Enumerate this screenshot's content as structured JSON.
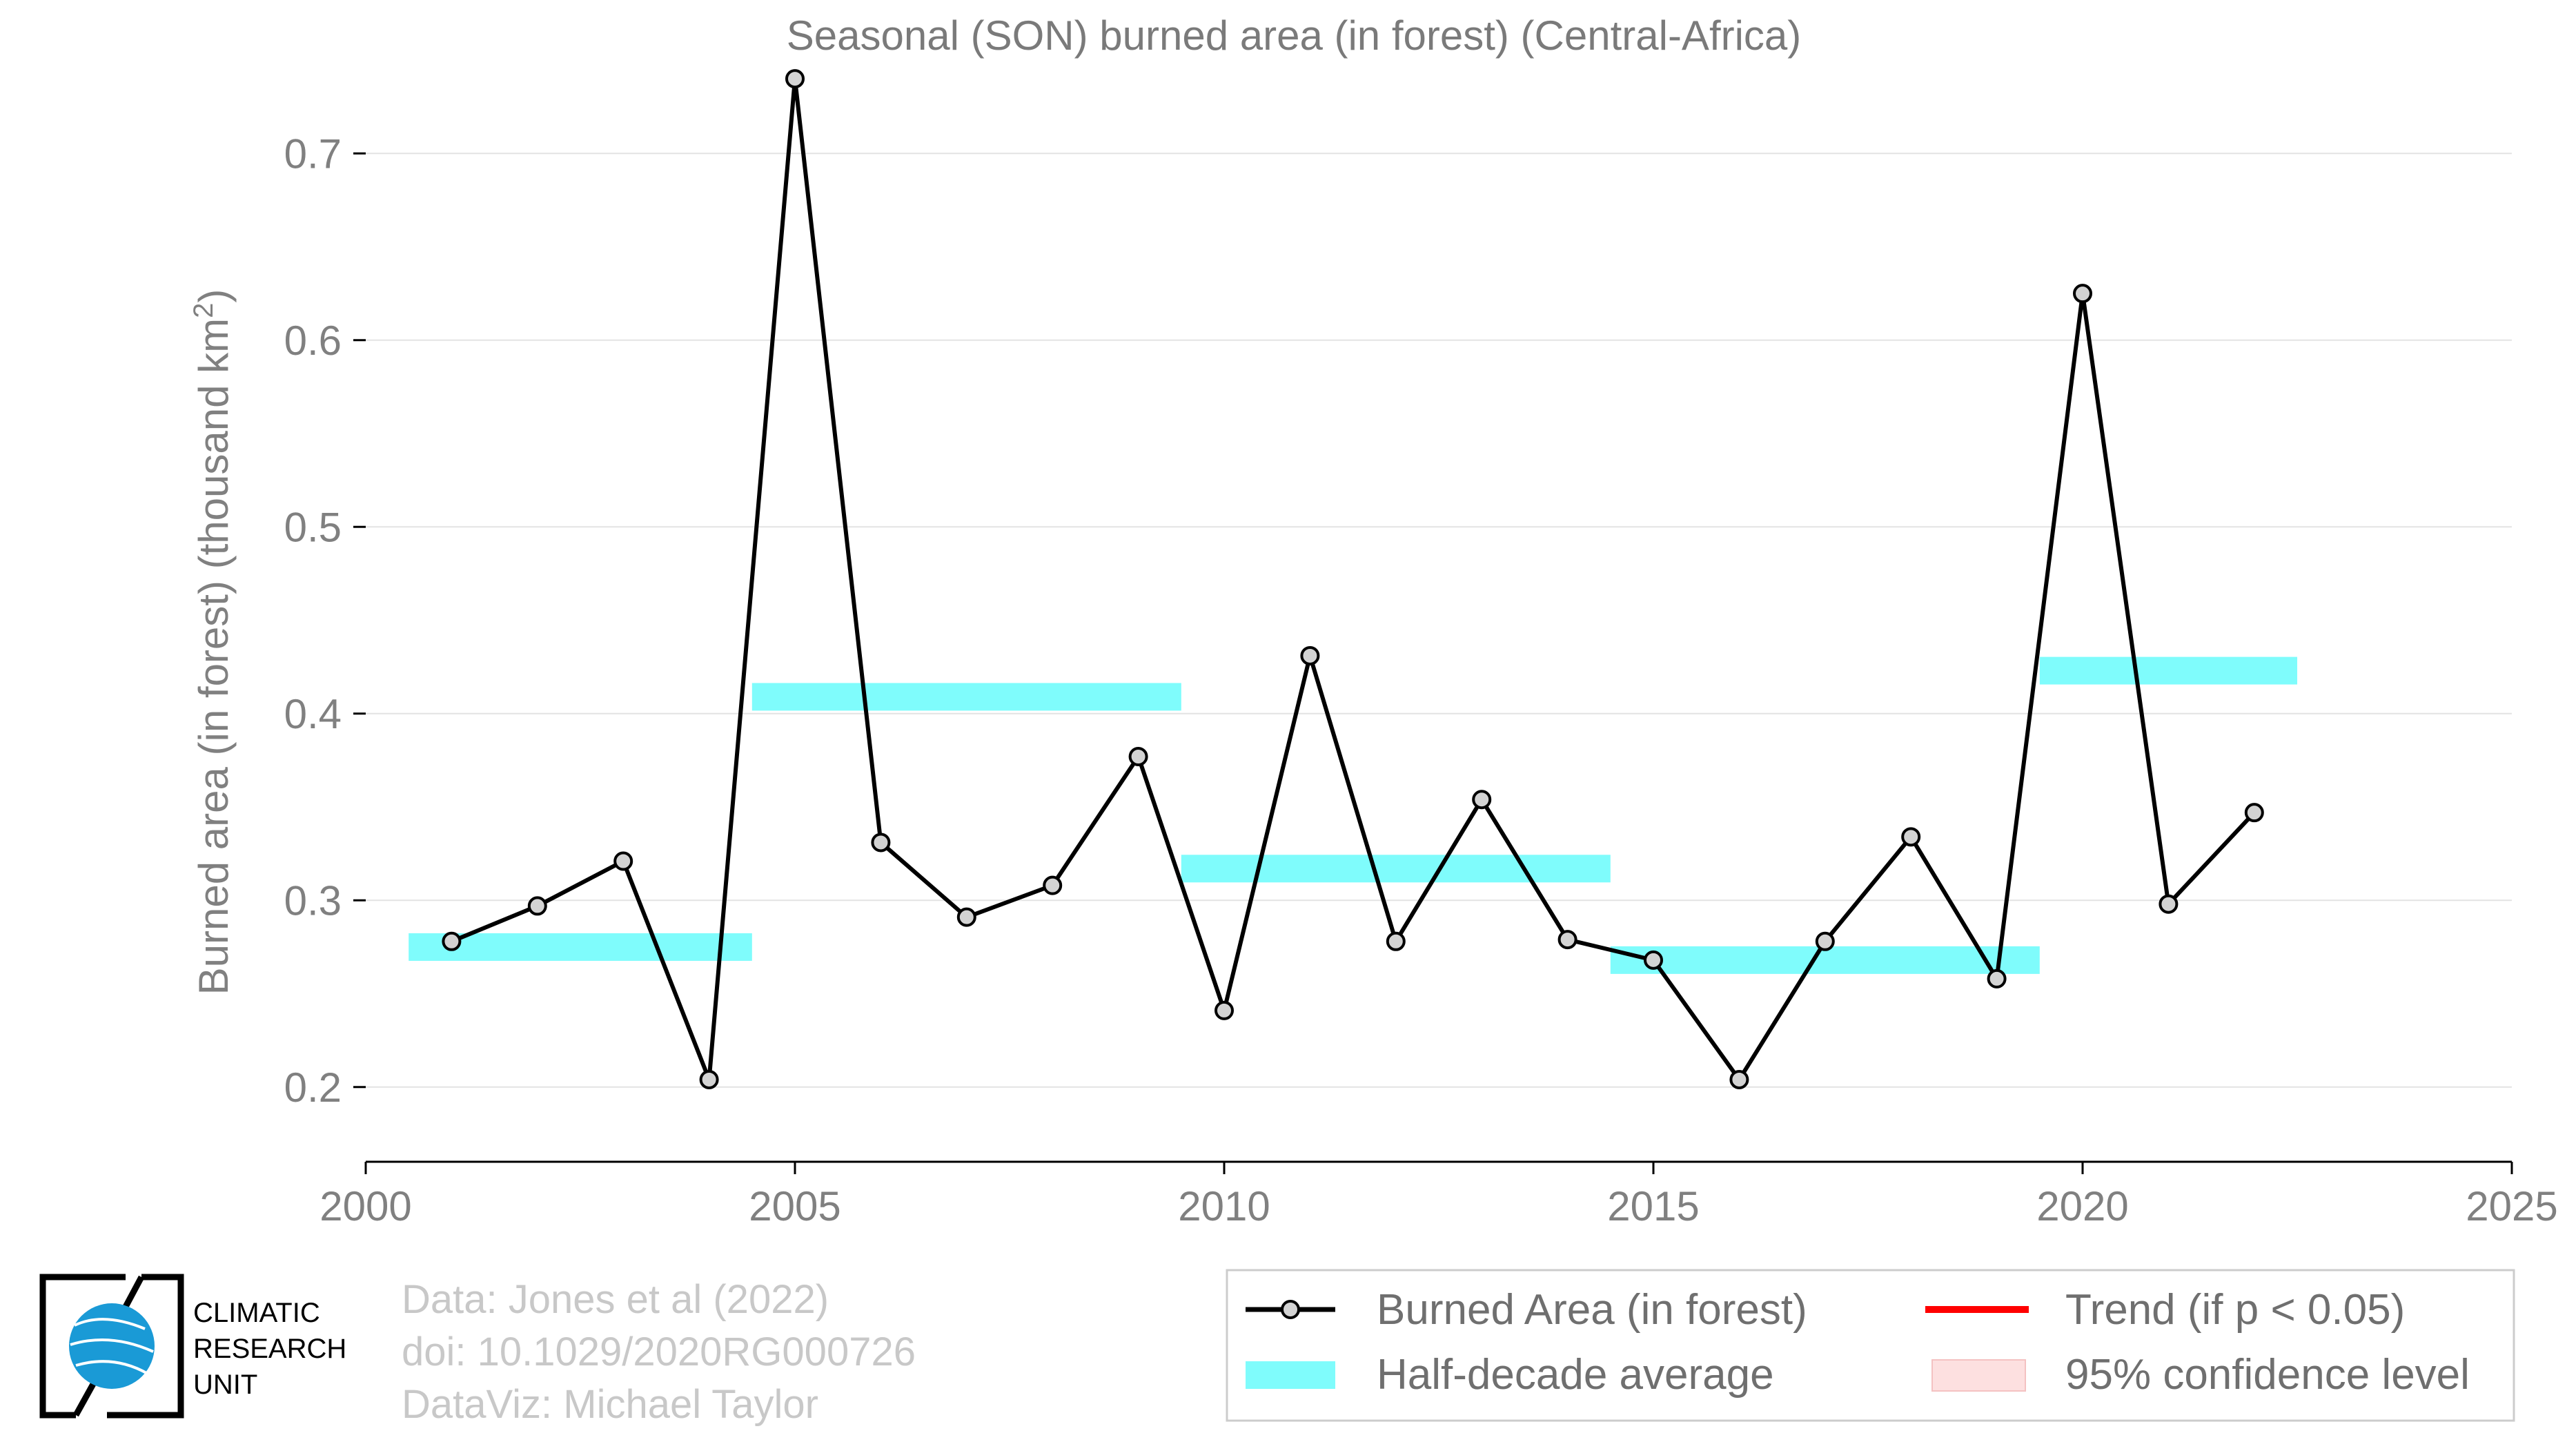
{
  "chart_data": {
    "type": "line",
    "title": "Seasonal (SON) burned area (in forest) (Central-Africa)",
    "ylabel_main": "Burned area (in forest) (thousand km",
    "ylabel_sup": "2",
    "ylabel_close": ")",
    "xlim": [
      2000,
      2025
    ],
    "ylim": [
      0.16,
      0.76
    ],
    "xticks": [
      2000,
      2005,
      2010,
      2015,
      2020,
      2025
    ],
    "yticks": [
      0.2,
      0.3,
      0.4,
      0.5,
      0.6,
      0.7
    ],
    "ytick_labels": [
      "0.2",
      "0.3",
      "0.4",
      "0.5",
      "0.6",
      "0.7"
    ],
    "grid": "horizontal",
    "series": [
      {
        "name": "Burned Area (in forest)",
        "color": "#000000",
        "marker_fill": "#d3d3d3",
        "x": [
          2001,
          2002,
          2003,
          2004,
          2005,
          2006,
          2007,
          2008,
          2009,
          2010,
          2011,
          2012,
          2013,
          2014,
          2015,
          2016,
          2017,
          2018,
          2019,
          2020,
          2021,
          2022
        ],
        "y": [
          0.278,
          0.297,
          0.321,
          0.204,
          0.74,
          0.331,
          0.291,
          0.308,
          0.377,
          0.241,
          0.431,
          0.278,
          0.354,
          0.279,
          0.268,
          0.204,
          0.278,
          0.334,
          0.258,
          0.625,
          0.298,
          0.347
        ]
      }
    ],
    "half_decade_average": {
      "name": "Half-decade average",
      "color": "#7ffcfc",
      "segments": [
        {
          "x0": 2000.5,
          "x1": 2004.5,
          "y": 0.275
        },
        {
          "x0": 2004.5,
          "x1": 2009.5,
          "y": 0.409
        },
        {
          "x0": 2009.5,
          "x1": 2014.5,
          "y": 0.317
        },
        {
          "x0": 2014.5,
          "x1": 2019.5,
          "y": 0.268
        },
        {
          "x0": 2019.5,
          "x1": 2022.5,
          "y": 0.423
        }
      ]
    },
    "legend": {
      "placement": "bottom-right",
      "items": [
        {
          "label": "Burned Area (in forest)",
          "kind": "line-marker",
          "color": "#000000"
        },
        {
          "label": "Trend (if p < 0.05)",
          "kind": "line",
          "color": "#ff0000"
        },
        {
          "label": "Half-decade average",
          "kind": "band",
          "color": "#7ffcfc"
        },
        {
          "label": "95% confidence level",
          "kind": "patch",
          "color": "#fde0e0"
        }
      ]
    }
  },
  "credits": {
    "line1": "Data: Jones et al (2022)",
    "line2": "doi: 10.1029/2020RG000726",
    "line3": "DataViz: Michael Taylor"
  },
  "logo": {
    "line1": "CLIMATIC",
    "line2": "RESEARCH",
    "line3": "UNIT",
    "globe_color": "#1a9ad6"
  }
}
